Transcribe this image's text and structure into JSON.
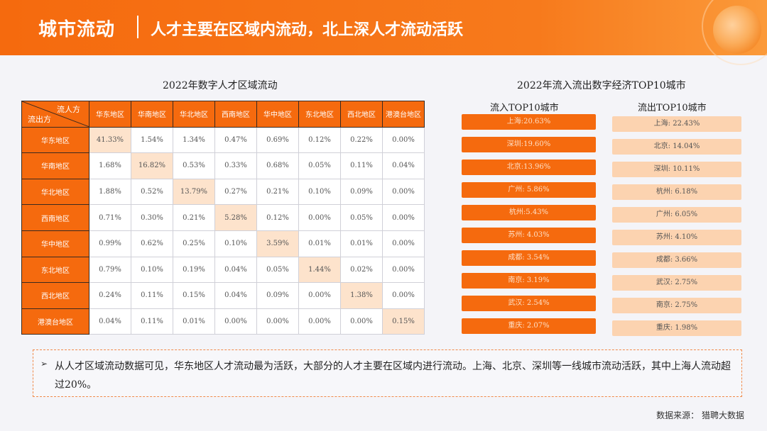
{
  "header": {
    "title": "城市流动",
    "subtitle": "人才主要在区域内流动，北上深人才流动活跃"
  },
  "matrix": {
    "title": "2022年数字人才区域流动",
    "corner_in": "流人方",
    "corner_out": "流出方",
    "columns": [
      "华东地区",
      "华南地区",
      "华北地区",
      "西南地区",
      "华中地区",
      "东北地区",
      "西北地区",
      "港澳台地区"
    ],
    "rows": [
      {
        "label": "华东地区",
        "cells": [
          "41.33%",
          "1.54%",
          "1.34%",
          "0.47%",
          "0.69%",
          "0.12%",
          "0.22%",
          "0.00%"
        ]
      },
      {
        "label": "华南地区",
        "cells": [
          "1.68%",
          "16.82%",
          "0.53%",
          "0.33%",
          "0.68%",
          "0.05%",
          "0.11%",
          "0.04%"
        ]
      },
      {
        "label": "华北地区",
        "cells": [
          "1.88%",
          "0.52%",
          "13.79%",
          "0.27%",
          "0.21%",
          "0.10%",
          "0.09%",
          "0.00%"
        ]
      },
      {
        "label": "西南地区",
        "cells": [
          "0.71%",
          "0.30%",
          "0.21%",
          "5.28%",
          "0.12%",
          "0.00%",
          "0.05%",
          "0.00%"
        ]
      },
      {
        "label": "华中地区",
        "cells": [
          "0.99%",
          "0.62%",
          "0.25%",
          "0.10%",
          "3.59%",
          "0.01%",
          "0.01%",
          "0.00%"
        ]
      },
      {
        "label": "东北地区",
        "cells": [
          "0.79%",
          "0.10%",
          "0.19%",
          "0.04%",
          "0.05%",
          "1.44%",
          "0.02%",
          "0.00%"
        ]
      },
      {
        "label": "西北地区",
        "cells": [
          "0.24%",
          "0.11%",
          "0.15%",
          "0.04%",
          "0.09%",
          "0.00%",
          "1.38%",
          "0.00%"
        ]
      },
      {
        "label": "港澳台地区",
        "cells": [
          "0.04%",
          "0.11%",
          "0.01%",
          "0.00%",
          "0.00%",
          "0.00%",
          "0.00%",
          "0.15%"
        ]
      }
    ]
  },
  "top10": {
    "title": "2022年流入流出数字经济TOP10城市",
    "inflow_title": "流入TOP10城市",
    "outflow_title": "流出TOP10城市",
    "inflow": [
      "上海:20.63%",
      "深圳:19.60%",
      "北京:13.96%",
      "广州: 5.86%",
      "杭州:5.43%",
      "苏州: 4.03%",
      "成都: 3.54%",
      "南京: 3.19%",
      "武汉: 2.54%",
      "重庆: 2.07%"
    ],
    "outflow": [
      "上海: 22.43%",
      "北京: 14.04%",
      "深圳: 10.11%",
      "杭州: 6.18%",
      "广州: 6.05%",
      "苏州: 4.10%",
      "成都: 3.66%",
      "武汉: 2.75%",
      "南京: 2.75%",
      "重庆: 1.98%"
    ]
  },
  "note": {
    "arrow": "➢",
    "text": "从人才区域流动数据可见，华东地区人才流动最为活跃，大部分的人才主要在区域内进行流动。上海、北京、深圳等一线城市流动活跃，其中上海人流动超过20%。"
  },
  "source": "数据来源： 猎聘大数据",
  "chart_data": [
    {
      "type": "heatmap",
      "title": "2022年数字人才区域流动",
      "xlabel": "流人方",
      "ylabel": "流出方",
      "x": [
        "华东地区",
        "华南地区",
        "华北地区",
        "西南地区",
        "华中地区",
        "东北地区",
        "西北地区",
        "港澳台地区"
      ],
      "y": [
        "华东地区",
        "华南地区",
        "华北地区",
        "西南地区",
        "华中地区",
        "东北地区",
        "西北地区",
        "港澳台地区"
      ],
      "values": [
        [
          41.33,
          1.54,
          1.34,
          0.47,
          0.69,
          0.12,
          0.22,
          0.0
        ],
        [
          1.68,
          16.82,
          0.53,
          0.33,
          0.68,
          0.05,
          0.11,
          0.04
        ],
        [
          1.88,
          0.52,
          13.79,
          0.27,
          0.21,
          0.1,
          0.09,
          0.0
        ],
        [
          0.71,
          0.3,
          0.21,
          5.28,
          0.12,
          0.0,
          0.05,
          0.0
        ],
        [
          0.99,
          0.62,
          0.25,
          0.1,
          3.59,
          0.01,
          0.01,
          0.0
        ],
        [
          0.79,
          0.1,
          0.19,
          0.04,
          0.05,
          1.44,
          0.02,
          0.0
        ],
        [
          0.24,
          0.11,
          0.15,
          0.04,
          0.09,
          0.0,
          1.38,
          0.0
        ],
        [
          0.04,
          0.11,
          0.01,
          0.0,
          0.0,
          0.0,
          0.0,
          0.15
        ]
      ]
    },
    {
      "type": "table",
      "title": "2022年流入流出数字经济TOP10城市",
      "series": [
        {
          "name": "流入TOP10城市",
          "categories": [
            "上海",
            "深圳",
            "北京",
            "广州",
            "杭州",
            "苏州",
            "成都",
            "南京",
            "武汉",
            "重庆"
          ],
          "values": [
            20.63,
            19.6,
            13.96,
            5.86,
            5.43,
            4.03,
            3.54,
            3.19,
            2.54,
            2.07
          ]
        },
        {
          "name": "流出TOP10城市",
          "categories": [
            "上海",
            "北京",
            "深圳",
            "杭州",
            "广州",
            "苏州",
            "成都",
            "武汉",
            "南京",
            "重庆"
          ],
          "values": [
            22.43,
            14.04,
            10.11,
            6.18,
            6.05,
            4.1,
            3.66,
            2.75,
            2.75,
            1.98
          ]
        }
      ]
    }
  ]
}
